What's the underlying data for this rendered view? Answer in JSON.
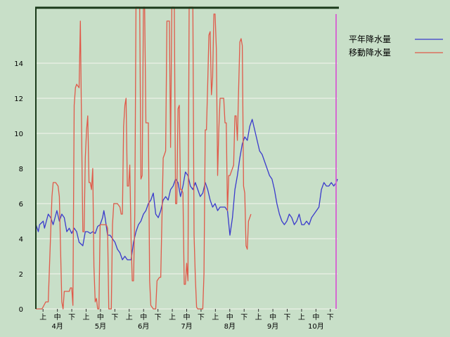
{
  "chart_data": {
    "type": "line",
    "title": "",
    "xlabel": "",
    "ylabel": "",
    "ylim": [
      0,
      17.2
    ],
    "yticks": [
      0,
      2,
      4,
      6,
      8,
      10,
      12,
      14
    ],
    "grid": true,
    "legend_position": "top-right",
    "x_dekads": [
      "上",
      "中",
      "下",
      "上",
      "中",
      "下",
      "上",
      "中",
      "下",
      "上",
      "中",
      "下",
      "上",
      "中",
      "下",
      "上",
      "中",
      "下",
      "上",
      "中",
      "下"
    ],
    "x_months": [
      "4月",
      "5月",
      "6月",
      "7月",
      "8月",
      "9月",
      "10月"
    ],
    "series": [
      {
        "name": "平年降水量",
        "color": "#3a3acc",
        "points": [
          [
            0,
            0
          ],
          [
            0.1,
            4.8
          ],
          [
            1,
            4.6
          ],
          [
            2,
            4.4
          ],
          [
            3,
            4.8
          ],
          [
            6,
            5.0
          ],
          [
            7,
            4.6
          ],
          [
            10,
            5.4
          ],
          [
            12,
            5.2
          ],
          [
            14,
            4.8
          ],
          [
            17,
            5.6
          ],
          [
            19,
            5.0
          ],
          [
            21,
            5.4
          ],
          [
            23,
            5.2
          ],
          [
            25,
            4.4
          ],
          [
            27,
            4.6
          ],
          [
            29,
            4.3
          ],
          [
            31,
            4.6
          ],
          [
            33,
            4.4
          ],
          [
            35,
            3.8
          ],
          [
            38,
            3.6
          ],
          [
            40,
            4.4
          ],
          [
            42,
            4.4
          ],
          [
            44,
            4.3
          ],
          [
            46,
            4.4
          ],
          [
            48,
            4.3
          ],
          [
            50,
            4.7
          ],
          [
            52,
            4.8
          ],
          [
            54,
            5.2
          ],
          [
            55,
            5.6
          ],
          [
            56,
            5.2
          ],
          [
            58,
            4.2
          ],
          [
            60,
            4.2
          ],
          [
            62,
            4.0
          ],
          [
            64,
            3.8
          ],
          [
            66,
            3.4
          ],
          [
            68,
            3.2
          ],
          [
            70,
            2.8
          ],
          [
            72,
            3.0
          ],
          [
            74,
            2.8
          ],
          [
            77,
            2.8
          ],
          [
            79,
            3.8
          ],
          [
            81,
            4.4
          ],
          [
            83,
            4.8
          ],
          [
            85,
            5.0
          ],
          [
            87,
            5.4
          ],
          [
            89,
            5.6
          ],
          [
            91,
            6.0
          ],
          [
            93,
            6.2
          ],
          [
            95,
            6.6
          ],
          [
            97,
            5.4
          ],
          [
            99,
            5.2
          ],
          [
            101,
            5.6
          ],
          [
            103,
            6.2
          ],
          [
            105,
            6.4
          ],
          [
            107,
            6.2
          ],
          [
            109,
            6.8
          ],
          [
            111,
            7.0
          ],
          [
            113,
            7.4
          ],
          [
            115,
            7.2
          ],
          [
            117,
            6.4
          ],
          [
            119,
            7.0
          ],
          [
            121,
            7.8
          ],
          [
            123,
            7.6
          ],
          [
            125,
            7.0
          ],
          [
            127,
            6.8
          ],
          [
            129,
            7.2
          ],
          [
            131,
            6.8
          ],
          [
            133,
            6.4
          ],
          [
            135,
            6.6
          ],
          [
            137,
            7.2
          ],
          [
            139,
            6.8
          ],
          [
            141,
            6.2
          ],
          [
            143,
            5.8
          ],
          [
            145,
            6.0
          ],
          [
            147,
            5.6
          ],
          [
            149,
            5.8
          ],
          [
            151,
            5.8
          ],
          [
            153,
            5.8
          ],
          [
            155,
            5.6
          ],
          [
            157,
            4.2
          ],
          [
            159,
            5.2
          ],
          [
            161,
            6.8
          ],
          [
            163,
            7.6
          ],
          [
            165,
            8.6
          ],
          [
            167,
            9.4
          ],
          [
            169,
            9.8
          ],
          [
            171,
            9.6
          ],
          [
            173,
            10.4
          ],
          [
            175,
            10.8
          ],
          [
            177,
            10.2
          ],
          [
            179,
            9.6
          ],
          [
            181,
            9.0
          ],
          [
            183,
            8.8
          ],
          [
            185,
            8.4
          ],
          [
            187,
            8.0
          ],
          [
            189,
            7.6
          ],
          [
            191,
            7.4
          ],
          [
            193,
            6.8
          ],
          [
            195,
            6.0
          ],
          [
            197,
            5.4
          ],
          [
            199,
            5.0
          ],
          [
            201,
            4.8
          ],
          [
            203,
            5.0
          ],
          [
            205,
            5.4
          ],
          [
            207,
            5.2
          ],
          [
            209,
            4.8
          ],
          [
            211,
            5.0
          ],
          [
            213,
            5.4
          ],
          [
            215,
            4.8
          ],
          [
            217,
            4.8
          ],
          [
            219,
            5.0
          ],
          [
            221,
            4.8
          ],
          [
            223,
            5.2
          ],
          [
            225,
            5.4
          ],
          [
            227,
            5.6
          ],
          [
            229,
            5.8
          ],
          [
            231,
            6.8
          ],
          [
            233,
            7.2
          ],
          [
            235,
            7.0
          ],
          [
            237,
            7.0
          ],
          [
            239,
            7.2
          ],
          [
            241,
            7.0
          ],
          [
            243,
            7.2
          ],
          [
            244,
            7.4
          ]
        ]
      },
      {
        "name": "移動降水量",
        "color": "#e05a4a",
        "points": [
          [
            0,
            0
          ],
          [
            5,
            0
          ],
          [
            8,
            0.4
          ],
          [
            10,
            0.4
          ],
          [
            13,
            6.4
          ],
          [
            14,
            7.2
          ],
          [
            16,
            7.2
          ],
          [
            18,
            7.0
          ],
          [
            19,
            6.4
          ],
          [
            21,
            0.4
          ],
          [
            22,
            0
          ],
          [
            23,
            1.0
          ],
          [
            27,
            1.0
          ],
          [
            28,
            1.2
          ],
          [
            29,
            1.2
          ],
          [
            30,
            0.2
          ],
          [
            31,
            11.6
          ],
          [
            32,
            12.6
          ],
          [
            33,
            12.8
          ],
          [
            35,
            12.6
          ],
          [
            36,
            16.4
          ],
          [
            37,
            10.0
          ],
          [
            38,
            4.4
          ],
          [
            39,
            4.4
          ],
          [
            40,
            8.6
          ],
          [
            41,
            10.2
          ],
          [
            42,
            11.0
          ],
          [
            43,
            7.2
          ],
          [
            44,
            7.2
          ],
          [
            45,
            6.8
          ],
          [
            46,
            8.0
          ],
          [
            47,
            2.4
          ],
          [
            48,
            0.4
          ],
          [
            49,
            0.6
          ],
          [
            50,
            0
          ],
          [
            51,
            0
          ],
          [
            52,
            4.8
          ],
          [
            57,
            4.8
          ],
          [
            58,
            4.6
          ],
          [
            59,
            0
          ],
          [
            60,
            0
          ],
          [
            61,
            0
          ],
          [
            62,
            4.8
          ],
          [
            63,
            6.0
          ],
          [
            64,
            6.0
          ],
          [
            66,
            6.0
          ],
          [
            68,
            5.8
          ],
          [
            69,
            5.4
          ],
          [
            70,
            5.4
          ],
          [
            71,
            10.4
          ],
          [
            72,
            11.6
          ],
          [
            73,
            12.0
          ],
          [
            74,
            7.0
          ],
          [
            75,
            7.0
          ],
          [
            76,
            8.2
          ],
          [
            77,
            4.0
          ],
          [
            78,
            1.6
          ],
          [
            79,
            1.6
          ],
          [
            80,
            5.4
          ],
          [
            81,
            17.2
          ],
          [
            82,
            17.2
          ],
          [
            83,
            17.2
          ],
          [
            84,
            17.2
          ],
          [
            85,
            7.4
          ],
          [
            86,
            7.6
          ],
          [
            87,
            17.2
          ],
          [
            88,
            17.2
          ],
          [
            89,
            10.6
          ],
          [
            90,
            10.6
          ],
          [
            91,
            10.6
          ],
          [
            92,
            1.6
          ],
          [
            93,
            0.2
          ],
          [
            94,
            0.1
          ],
          [
            95,
            0
          ],
          [
            96,
            0
          ],
          [
            97,
            0
          ],
          [
            98,
            1.6
          ],
          [
            100,
            1.8
          ],
          [
            101,
            1.8
          ],
          [
            103,
            8.6
          ],
          [
            104,
            8.8
          ],
          [
            105,
            9.0
          ],
          [
            106,
            16.4
          ],
          [
            107,
            16.4
          ],
          [
            108,
            16.4
          ],
          [
            109,
            9.2
          ],
          [
            110,
            17.2
          ],
          [
            111,
            17.2
          ],
          [
            112,
            17.2
          ],
          [
            113,
            6.0
          ],
          [
            114,
            6.0
          ],
          [
            115,
            11.4
          ],
          [
            116,
            11.6
          ],
          [
            117,
            6.8
          ],
          [
            118,
            6.8
          ],
          [
            119,
            6.6
          ],
          [
            120,
            1.4
          ],
          [
            121,
            1.4
          ],
          [
            122,
            2.6
          ],
          [
            123,
            1.6
          ],
          [
            124,
            17.2
          ],
          [
            125,
            17.2
          ],
          [
            126,
            17.2
          ],
          [
            127,
            17.2
          ],
          [
            128,
            4.2
          ],
          [
            129,
            1.8
          ],
          [
            130,
            0.1
          ],
          [
            131,
            0
          ],
          [
            135,
            0
          ],
          [
            136,
            2.0
          ],
          [
            137,
            10.2
          ],
          [
            138,
            10.2
          ],
          [
            139,
            12.8
          ],
          [
            140,
            15.6
          ],
          [
            141,
            15.8
          ],
          [
            142,
            12.2
          ],
          [
            143,
            13.2
          ],
          [
            144,
            16.8
          ],
          [
            145,
            16.8
          ],
          [
            146,
            14.8
          ],
          [
            147,
            7.6
          ],
          [
            148,
            10.2
          ],
          [
            149,
            12.0
          ],
          [
            150,
            12.0
          ],
          [
            152,
            12.0
          ],
          [
            153,
            10.6
          ],
          [
            154,
            10.6
          ],
          [
            155,
            5.6
          ],
          [
            156,
            7.6
          ],
          [
            157,
            7.6
          ],
          [
            159,
            8.0
          ],
          [
            160,
            8.2
          ],
          [
            161,
            11.0
          ],
          [
            162,
            11.0
          ],
          [
            163,
            9.6
          ],
          [
            164,
            12.4
          ],
          [
            165,
            15.2
          ],
          [
            166,
            15.4
          ],
          [
            167,
            15.0
          ],
          [
            168,
            7.0
          ],
          [
            169,
            6.6
          ],
          [
            170,
            3.6
          ],
          [
            171,
            3.4
          ],
          [
            172,
            5.0
          ],
          [
            173,
            5.2
          ],
          [
            174,
            5.4
          ]
        ]
      }
    ]
  }
}
